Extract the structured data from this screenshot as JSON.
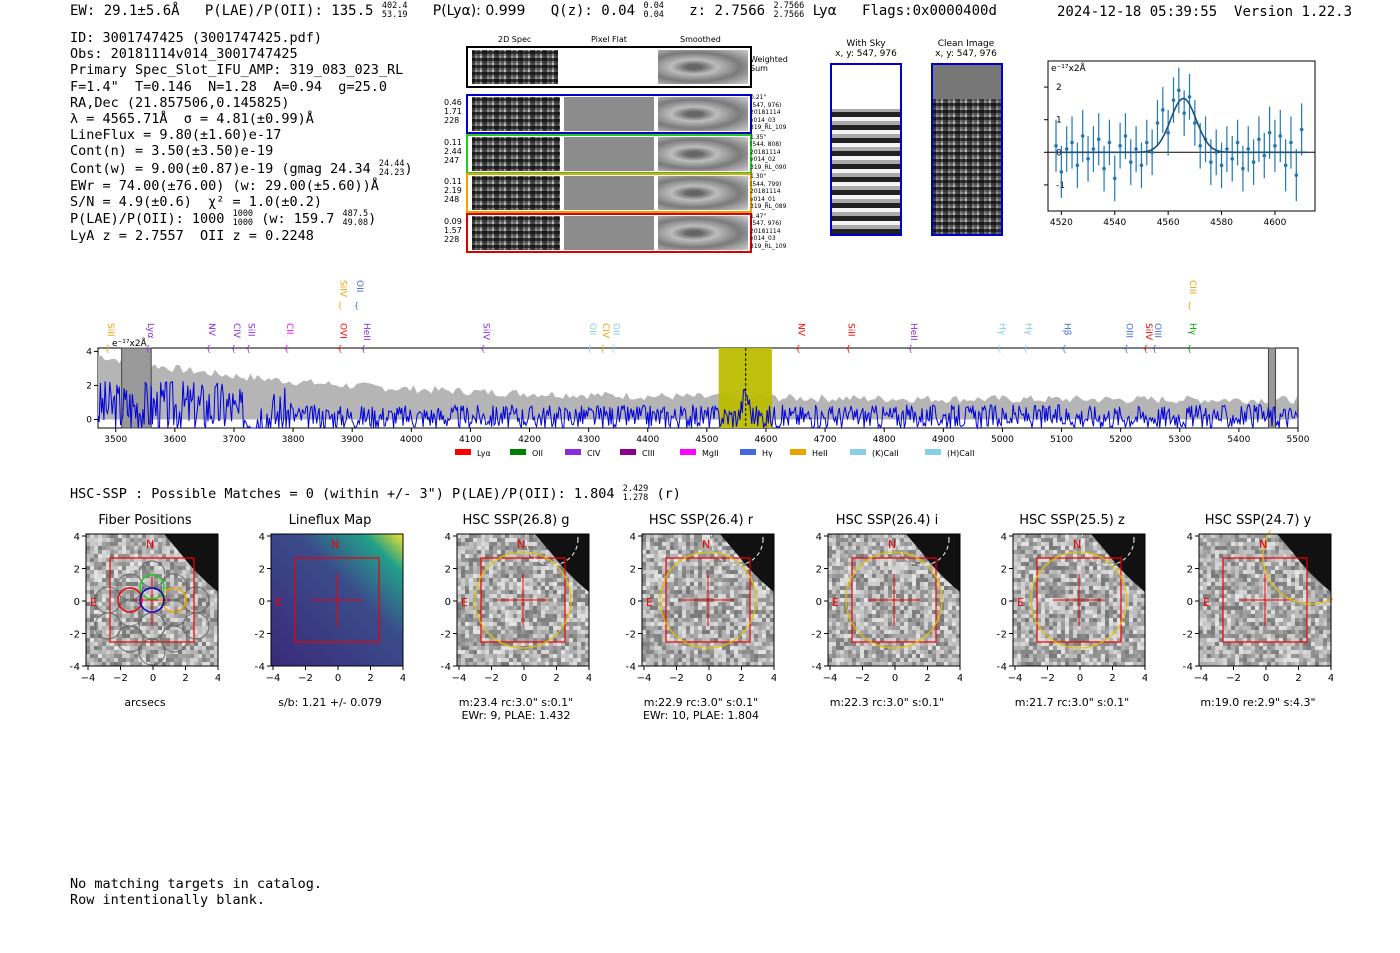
{
  "header": {
    "ew": "EW: 29.1±5.6Å",
    "plae_label": "P(LAE)/P(OII): 135.5",
    "plae_hi": "402.4",
    "plae_lo": "53.19",
    "plya": "P(Lyα): 0.999",
    "qz_label": "Q(z): 0.04",
    "qz_hi": "0.04",
    "qz_lo": "0.04",
    "z_label": "z: 2.7566",
    "z_hi": "2.7566",
    "z_lo": "2.7566",
    "z_line": "Lyα",
    "flags": "Flags:0x0000400d",
    "timestamp": "2024-12-18 05:39:55",
    "version": "Version 1.22.3"
  },
  "info": {
    "id": "ID: 3001747425 (3001747425.pdf)",
    "obs": "Obs: 20181114v014_3001747425",
    "primary": "Primary Spec_Slot_IFU_AMP: 319_083_023_RL",
    "fiber": "F=1.4\"  T=0.146  N=1.28  A=0.94  g=25.0",
    "radec": "RA,Dec (21.857506,0.145825)",
    "lambda": "λ = 4565.71Å  σ = 4.81(±0.99)Å",
    "lineflux": "LineFlux = 9.80(±1.60)e-17",
    "contn": "Cont(n) = 3.50(±3.50)e-19",
    "contw": "Cont(w) = 9.00(±0.87)e-19 (gmag 24.34",
    "contw_hi": "24.44",
    "contw_lo": "24.23",
    "contw_end": ")",
    "ewr": "EWr = 74.00(±76.00) (w: 29.00(±5.60))Å",
    "sn": "S/N = 4.9(±0.6)  χ² = 1.0(±0.2)",
    "plae": "P(LAE)/P(OII): 1000",
    "plae_hi": "1000",
    "plae_lo": "1000",
    "plae_w": "(w: 159.7",
    "plae_w_hi": "487.5",
    "plae_w_lo": "49.08",
    "plae_end": ")",
    "z": "LyA z = 2.7557  OII z = 0.2248"
  },
  "cutouts": {
    "col_headers": [
      "2D Spec",
      "Pixel Flat",
      "Smoothed"
    ],
    "weighted_label": "Weighted\nSum",
    "rows": [
      {
        "left": [
          "0.46",
          "1.71",
          "228"
        ],
        "right": [
          "0.21\"",
          "(547, 976)",
          "20181114",
          "v014_03",
          "319_RL_109"
        ],
        "color": "#0000cc"
      },
      {
        "left": [
          "0.11",
          "2.44",
          "247"
        ],
        "right": [
          "1.35\"",
          "(544, 808)",
          "20181114",
          "v014_02",
          "319_RL_090"
        ],
        "color": "#22cc22"
      },
      {
        "left": [
          "0.11",
          "2.19",
          "248"
        ],
        "right": [
          "1.30\"",
          "(544, 799)",
          "20181114",
          "v014_01",
          "319_RL_089"
        ],
        "color": "#f0a000"
      },
      {
        "left": [
          "0.09",
          "1.57",
          "228"
        ],
        "right": [
          "1.47\"",
          "(547, 976)",
          "20181114",
          "v014_03",
          "319_RL_109"
        ],
        "color": "#dd0000"
      }
    ],
    "with_sky": "With Sky",
    "with_sky_xy": "x, y: 547, 976",
    "clean": "Clean Image",
    "clean_xy": "x, y: 547, 976"
  },
  "chart_data": [
    {
      "type": "line",
      "name": "emission-line-fit",
      "ylabel": "e⁻¹⁷x2Å",
      "xlim": [
        4515,
        4615
      ],
      "ylim": [
        -1.8,
        2.8
      ],
      "xticks": [
        4520,
        4540,
        4560,
        4580,
        4600
      ],
      "yticks": [
        -1,
        0,
        1,
        2
      ],
      "points": [
        {
          "x": 4518,
          "y": 0.2,
          "e": 0.8
        },
        {
          "x": 4520,
          "y": -0.6,
          "e": 0.8
        },
        {
          "x": 4522,
          "y": 0.1,
          "e": 0.7
        },
        {
          "x": 4524,
          "y": 0.3,
          "e": 0.8
        },
        {
          "x": 4526,
          "y": -0.4,
          "e": 0.7
        },
        {
          "x": 4528,
          "y": 0.5,
          "e": 0.8
        },
        {
          "x": 4530,
          "y": -0.2,
          "e": 0.7
        },
        {
          "x": 4532,
          "y": 0.1,
          "e": 0.7
        },
        {
          "x": 4534,
          "y": 0.4,
          "e": 0.8
        },
        {
          "x": 4536,
          "y": -0.5,
          "e": 0.7
        },
        {
          "x": 4538,
          "y": 0.3,
          "e": 0.7
        },
        {
          "x": 4540,
          "y": -0.8,
          "e": 0.7
        },
        {
          "x": 4542,
          "y": 0.2,
          "e": 0.7
        },
        {
          "x": 4544,
          "y": 0.5,
          "e": 0.7
        },
        {
          "x": 4546,
          "y": -0.3,
          "e": 0.7
        },
        {
          "x": 4548,
          "y": 0.1,
          "e": 0.7
        },
        {
          "x": 4550,
          "y": -0.4,
          "e": 0.7
        },
        {
          "x": 4552,
          "y": 0.3,
          "e": 0.7
        },
        {
          "x": 4554,
          "y": 0.0,
          "e": 0.7
        },
        {
          "x": 4556,
          "y": 0.9,
          "e": 0.7
        },
        {
          "x": 4558,
          "y": 1.3,
          "e": 0.7
        },
        {
          "x": 4560,
          "y": 0.6,
          "e": 0.7
        },
        {
          "x": 4562,
          "y": 1.6,
          "e": 0.7
        },
        {
          "x": 4564,
          "y": 1.9,
          "e": 0.7
        },
        {
          "x": 4566,
          "y": 1.2,
          "e": 0.7
        },
        {
          "x": 4568,
          "y": 1.7,
          "e": 0.7
        },
        {
          "x": 4570,
          "y": 0.9,
          "e": 0.7
        },
        {
          "x": 4572,
          "y": 0.2,
          "e": 0.7
        },
        {
          "x": 4574,
          "y": 0.4,
          "e": 0.7
        },
        {
          "x": 4576,
          "y": -0.3,
          "e": 0.7
        },
        {
          "x": 4578,
          "y": 0.0,
          "e": 0.7
        },
        {
          "x": 4580,
          "y": -0.4,
          "e": 0.7
        },
        {
          "x": 4582,
          "y": 0.1,
          "e": 0.7
        },
        {
          "x": 4584,
          "y": -0.2,
          "e": 0.7
        },
        {
          "x": 4586,
          "y": 0.3,
          "e": 0.7
        },
        {
          "x": 4588,
          "y": -0.5,
          "e": 0.7
        },
        {
          "x": 4590,
          "y": 0.1,
          "e": 0.7
        },
        {
          "x": 4592,
          "y": -0.3,
          "e": 0.7
        },
        {
          "x": 4594,
          "y": 0.4,
          "e": 0.7
        },
        {
          "x": 4596,
          "y": -0.1,
          "e": 0.7
        },
        {
          "x": 4598,
          "y": 0.6,
          "e": 0.8
        },
        {
          "x": 4600,
          "y": 0.2,
          "e": 0.8
        },
        {
          "x": 4602,
          "y": 0.5,
          "e": 0.8
        },
        {
          "x": 4604,
          "y": -0.4,
          "e": 0.8
        },
        {
          "x": 4606,
          "y": 0.3,
          "e": 0.8
        },
        {
          "x": 4608,
          "y": -0.7,
          "e": 0.8
        },
        {
          "x": 4610,
          "y": 0.7,
          "e": 0.8
        }
      ],
      "fit": {
        "center": 4565.71,
        "sigma": 4.81,
        "amp": 1.65,
        "x": [
          4518,
          4612
        ]
      }
    },
    {
      "type": "line",
      "name": "full-spectrum",
      "ylabel": "e⁻¹⁷x2Å",
      "xlim": [
        3470,
        5500
      ],
      "ylim": [
        -0.5,
        4.2
      ],
      "xticks": [
        3500,
        3600,
        3700,
        3800,
        3900,
        4000,
        4100,
        4200,
        4300,
        4400,
        4500,
        4600,
        4700,
        4800,
        4900,
        5000,
        5100,
        5200,
        5300,
        5400,
        5500
      ],
      "yticks": [
        0,
        2,
        4
      ],
      "highlight": [
        4520,
        4610
      ],
      "highlight_line": 4565.7,
      "hatch": [
        [
          3510,
          3560
        ],
        [
          5450,
          5462
        ]
      ],
      "lines": [
        {
          "label": "SiII",
          "x": 3487,
          "row": 1,
          "color": "#f0a000"
        },
        {
          "label": "Lyα",
          "x": 3555,
          "row": 1,
          "color": "#8a2be2"
        },
        {
          "label": "NV",
          "x": 3658,
          "row": 1,
          "color": "#8a2be2"
        },
        {
          "label": "CIV",
          "x": 3700,
          "row": 1,
          "color": "#8a2be2"
        },
        {
          "label": "SiII",
          "x": 3725,
          "row": 1,
          "color": "#8a2be2"
        },
        {
          "label": "CII",
          "x": 3790,
          "row": 1,
          "color": "#ff00ff"
        },
        {
          "label": "SiIV",
          "x": 3880,
          "row": 0,
          "color": "#f0a000"
        },
        {
          "label": "OII",
          "x": 3908,
          "row": 0,
          "color": "#4169e1"
        },
        {
          "label": "OVI",
          "x": 3880,
          "row": 1,
          "color": "#ff0000"
        },
        {
          "label": "HeII",
          "x": 3920,
          "row": 1,
          "color": "#8a2be2"
        },
        {
          "label": "SiIV",
          "x": 4122,
          "row": 1,
          "color": "#8a2be2"
        },
        {
          "label": "OII",
          "x": 4302,
          "row": 1,
          "color": "#87ceeb"
        },
        {
          "label": "CIV",
          "x": 4324,
          "row": 1,
          "color": "#f0a000"
        },
        {
          "label": "OII",
          "x": 4342,
          "row": 1,
          "color": "#87ceeb"
        },
        {
          "label": "NV",
          "x": 4655,
          "row": 1,
          "color": "#ff0000"
        },
        {
          "label": "SiII",
          "x": 4740,
          "row": 1,
          "color": "#ff0000"
        },
        {
          "label": "HeII",
          "x": 4845,
          "row": 1,
          "color": "#8a2be2"
        },
        {
          "label": "Hγ",
          "x": 4995,
          "row": 1,
          "color": "#87ceeb"
        },
        {
          "label": "Hγ",
          "x": 5040,
          "row": 1,
          "color": "#87ceeb"
        },
        {
          "label": "Hβ",
          "x": 5105,
          "row": 1,
          "color": "#4169e1"
        },
        {
          "label": "OIII",
          "x": 5210,
          "row": 1,
          "color": "#4169e1"
        },
        {
          "label": "SiIV",
          "x": 5243,
          "row": 1,
          "color": "#ff0000"
        },
        {
          "label": "OIII",
          "x": 5258,
          "row": 1,
          "color": "#4169e1"
        },
        {
          "label": "CIII",
          "x": 5317,
          "row": 0,
          "color": "#f0a000"
        },
        {
          "label": "Hγ",
          "x": 5317,
          "row": 1,
          "color": "#00aa00"
        }
      ],
      "legend": [
        {
          "label": "Lyα",
          "color": "#ff0000"
        },
        {
          "label": "OII",
          "color": "#008000"
        },
        {
          "label": "CIV",
          "color": "#8a2be2"
        },
        {
          "label": "CIII",
          "color": "#8b008b"
        },
        {
          "label": "MgII",
          "color": "#ff00ff"
        },
        {
          "label": "Hγ",
          "color": "#4169e1"
        },
        {
          "label": "HeII",
          "color": "#f0a000"
        },
        {
          "label": "(K)CaII",
          "color": "#87ceeb"
        },
        {
          "label": "(H)CaII",
          "color": "#87ceeb"
        }
      ]
    }
  ],
  "hsc": {
    "summary": "HSC-SSP : Possible Matches = 0 (within +/- 3\")  P(LAE)/P(OII): 1.804",
    "summary_hi": "2.429",
    "summary_lo": "1.278",
    "summary_band": "(r)",
    "ticks": [
      "−4",
      "−2",
      "0",
      "2",
      "4"
    ],
    "panels": [
      {
        "title": "Fiber Positions",
        "cap1": "arcsecs",
        "cap2": ""
      },
      {
        "title": "Lineflux Map",
        "cap1": "s/b: 1.21 +/- 0.079",
        "cap2": ""
      },
      {
        "title": "HSC SSP(26.8) g",
        "cap1": "m:23.4 rc:3.0\"  s:0.1\"",
        "cap2": "EWr: 9, PLAE: 1.432"
      },
      {
        "title": "HSC SSP(26.4) r",
        "cap1": "m:22.9 rc:3.0\"  s:0.1\"",
        "cap2": "EWr: 10, PLAE: 1.804"
      },
      {
        "title": "HSC SSP(26.4) i",
        "cap1": "m:22.3 rc:3.0\"  s:0.1\"",
        "cap2": ""
      },
      {
        "title": "HSC SSP(25.5) z",
        "cap1": "m:21.7 rc:3.0\"  s:0.1\"",
        "cap2": ""
      },
      {
        "title": "HSC SSP(24.7) y",
        "cap1": "m:19.0  re:2.9\"  s:4.3\"",
        "cap2": ""
      }
    ],
    "north": "N",
    "east": "E"
  },
  "footer": {
    "line1": "No matching targets in catalog.",
    "line2": "Row intentionally blank."
  }
}
